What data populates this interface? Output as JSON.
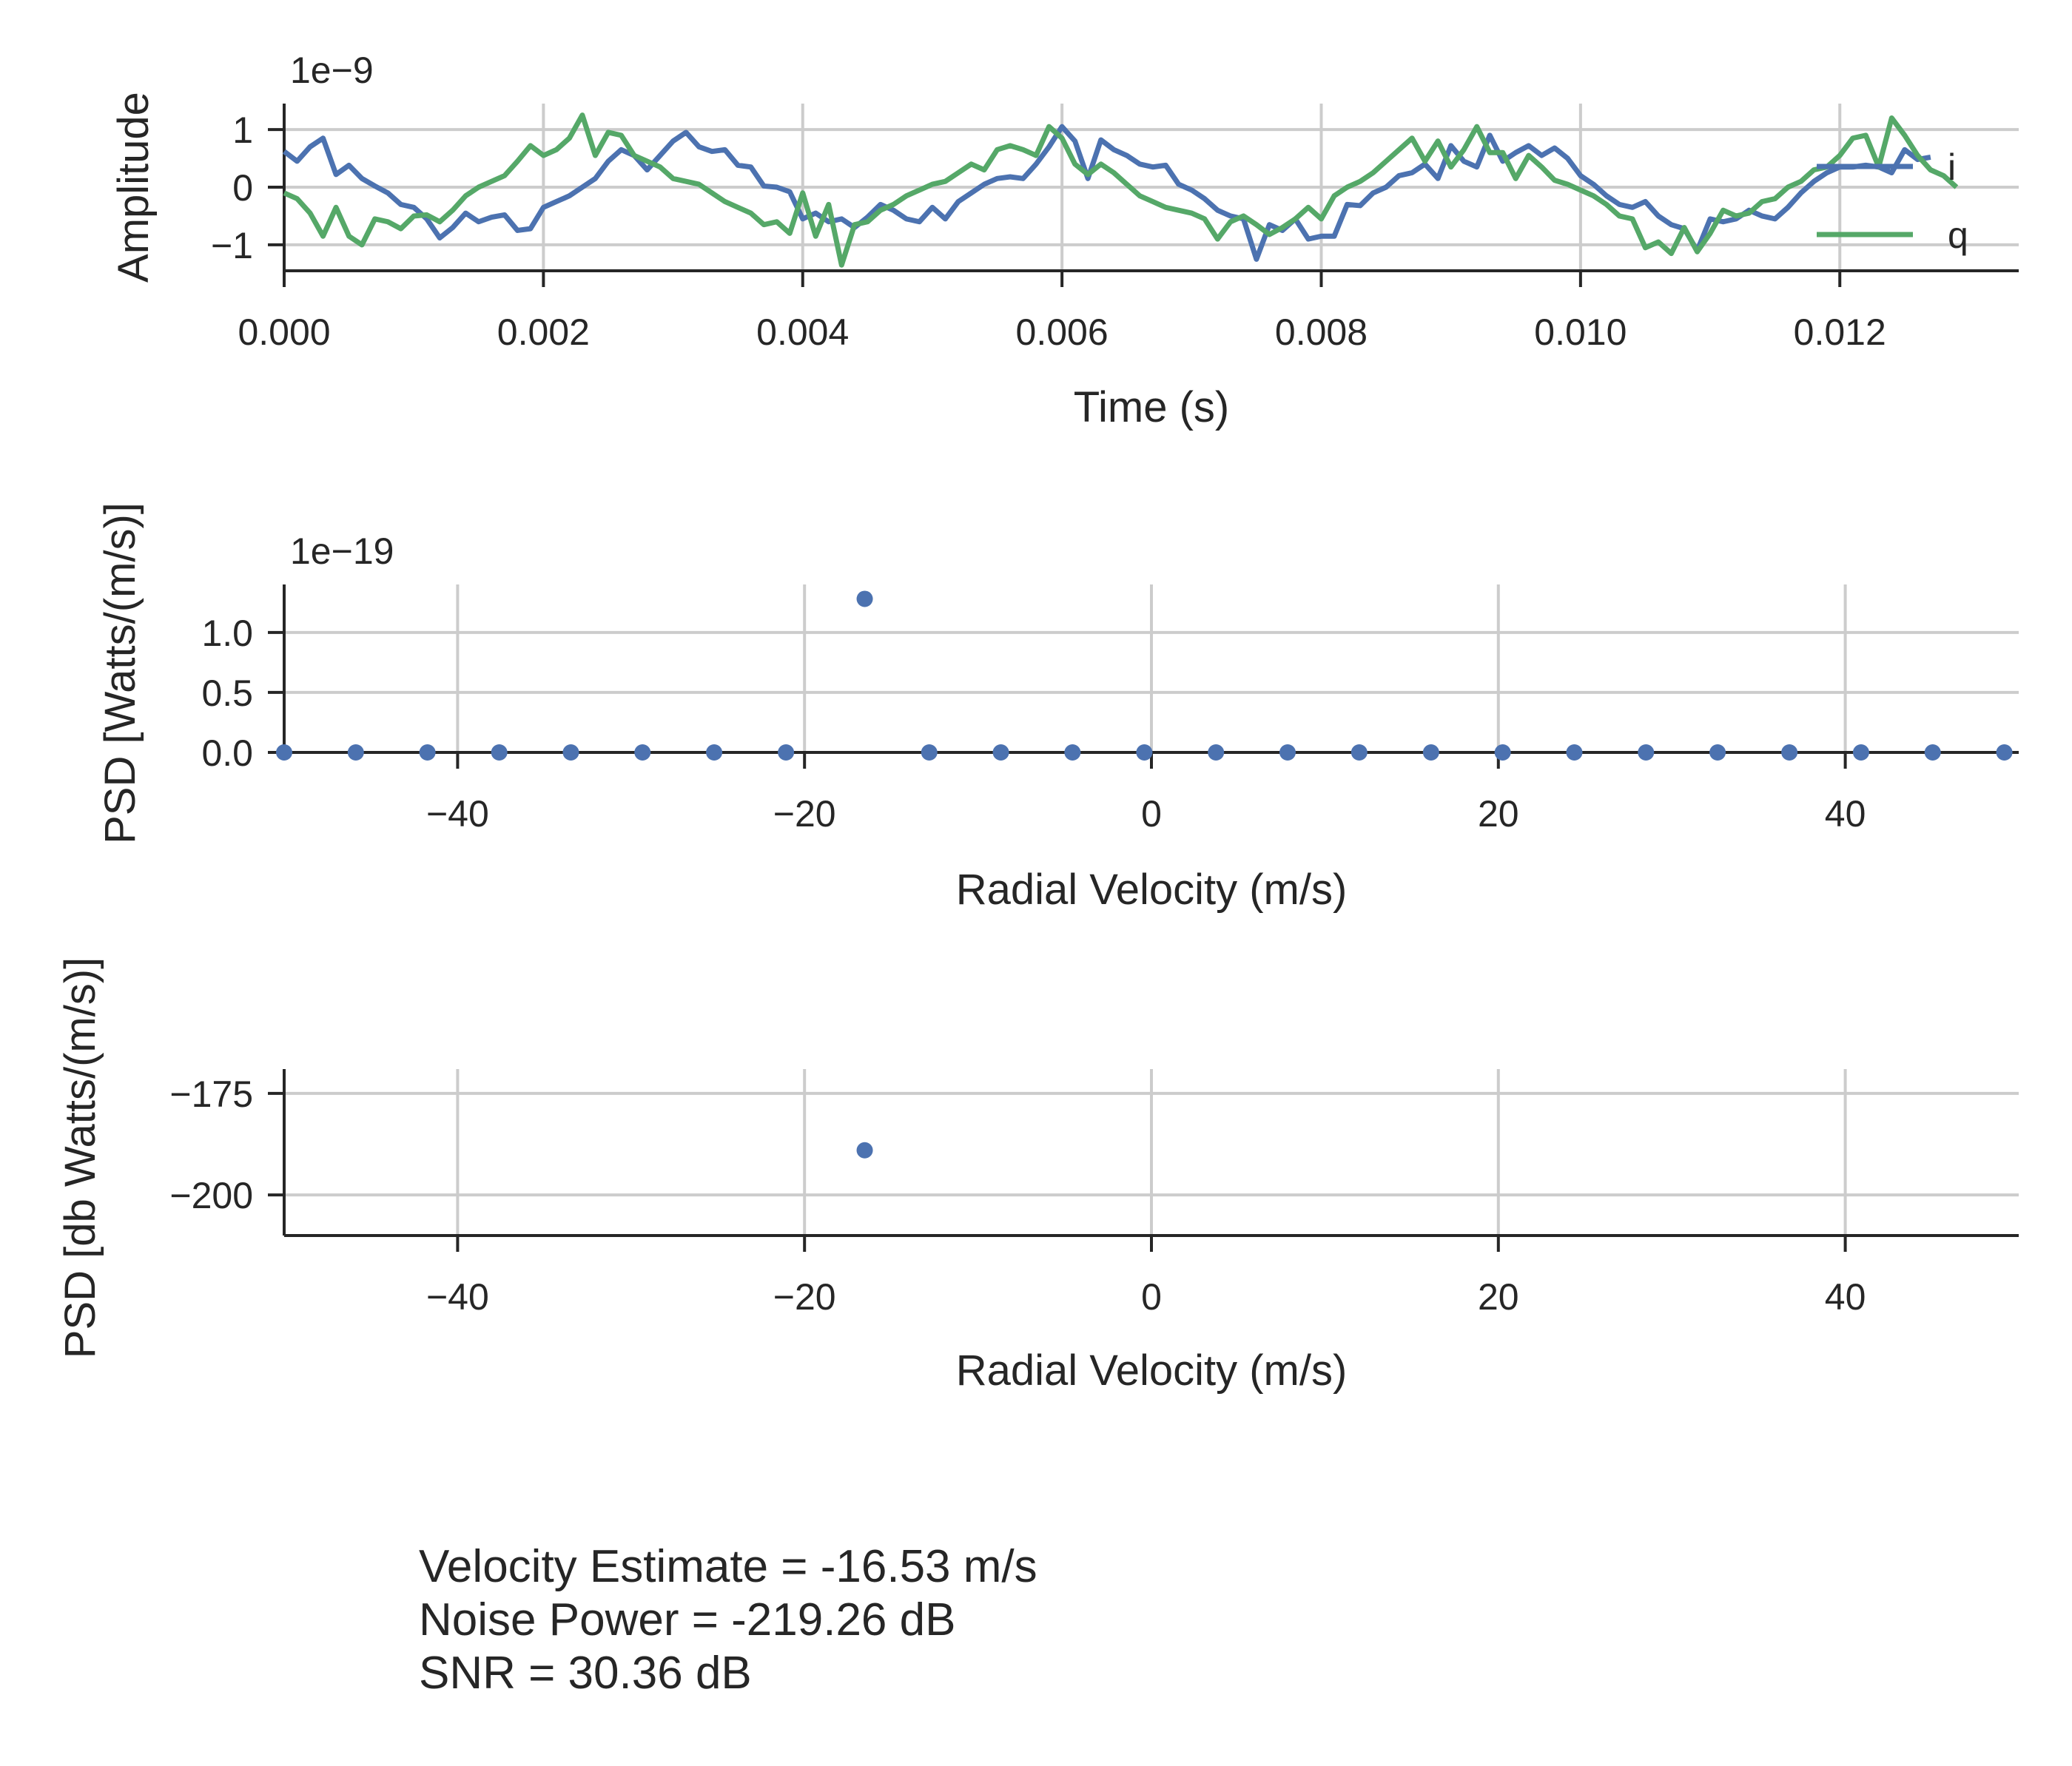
{
  "chart_data": [
    {
      "type": "line",
      "xlabel": "Time (s)",
      "ylabel": "Amplitude",
      "offset_text": "1e−9",
      "xlim": [
        0,
        0.01338
      ],
      "ylim": [
        -1.45,
        1.45
      ],
      "xticks": [
        0.0,
        0.002,
        0.004,
        0.006,
        0.008,
        0.01,
        0.012
      ],
      "xtick_labels": [
        "0.000",
        "0.002",
        "0.004",
        "0.006",
        "0.008",
        "0.010",
        "0.012"
      ],
      "yticks": [
        -1,
        0,
        1
      ],
      "ytick_labels": [
        "−1",
        "0",
        "1"
      ],
      "grid": true,
      "legend_position": "right",
      "dt": 0.0001,
      "series": [
        {
          "name": "i",
          "color": "#4c72b0",
          "values": [
            0.62,
            0.45,
            0.7,
            0.85,
            0.22,
            0.38,
            0.15,
            0.02,
            -0.1,
            -0.3,
            -0.35,
            -0.55,
            -0.88,
            -0.7,
            -0.45,
            -0.6,
            -0.52,
            -0.48,
            -0.75,
            -0.72,
            -0.35,
            -0.25,
            -0.15,
            0.0,
            0.15,
            0.45,
            0.65,
            0.55,
            0.3,
            0.55,
            0.8,
            0.95,
            0.7,
            0.62,
            0.65,
            0.38,
            0.35,
            0.02,
            0.0,
            -0.08,
            -0.55,
            -0.45,
            -0.6,
            -0.55,
            -0.7,
            -0.52,
            -0.3,
            -0.4,
            -0.55,
            -0.6,
            -0.35,
            -0.55,
            -0.25,
            -0.1,
            0.05,
            0.15,
            0.18,
            0.15,
            0.4,
            0.7,
            1.05,
            0.8,
            0.15,
            0.82,
            0.65,
            0.55,
            0.4,
            0.35,
            0.38,
            0.05,
            -0.05,
            -0.2,
            -0.4,
            -0.5,
            -0.55,
            -1.25,
            -0.65,
            -0.75,
            -0.55,
            -0.9,
            -0.85,
            -0.85,
            -0.3,
            -0.32,
            -0.1,
            0.0,
            0.2,
            0.25,
            0.4,
            0.15,
            0.72,
            0.45,
            0.35,
            0.9,
            0.45,
            0.6,
            0.72,
            0.55,
            0.68,
            0.5,
            0.2,
            0.05,
            -0.15,
            -0.3,
            -0.35,
            -0.25,
            -0.5,
            -0.65,
            -0.72,
            -1.1,
            -0.55,
            -0.6,
            -0.55,
            -0.4,
            -0.5,
            -0.55,
            -0.35,
            -0.1,
            0.1,
            0.25,
            0.35,
            0.35,
            0.38,
            0.35,
            0.25,
            0.65,
            0.48,
            0.52
          ]
        },
        {
          "name": "q",
          "color": "#55a868",
          "values": [
            -0.1,
            -0.2,
            -0.45,
            -0.85,
            -0.35,
            -0.85,
            -1.0,
            -0.55,
            -0.6,
            -0.72,
            -0.5,
            -0.48,
            -0.6,
            -0.4,
            -0.15,
            0.0,
            0.1,
            0.2,
            0.45,
            0.72,
            0.55,
            0.65,
            0.85,
            1.25,
            0.55,
            0.95,
            0.9,
            0.55,
            0.45,
            0.35,
            0.15,
            0.1,
            0.05,
            -0.1,
            -0.25,
            -0.35,
            -0.45,
            -0.65,
            -0.6,
            -0.8,
            -0.1,
            -0.85,
            -0.3,
            -1.35,
            -0.65,
            -0.6,
            -0.4,
            -0.3,
            -0.15,
            -0.05,
            0.05,
            0.1,
            0.25,
            0.4,
            0.3,
            0.65,
            0.72,
            0.65,
            0.55,
            1.05,
            0.85,
            0.4,
            0.22,
            0.4,
            0.25,
            0.05,
            -0.15,
            -0.25,
            -0.35,
            -0.4,
            -0.45,
            -0.55,
            -0.9,
            -0.6,
            -0.5,
            -0.65,
            -0.82,
            -0.7,
            -0.55,
            -0.35,
            -0.55,
            -0.15,
            0.0,
            0.1,
            0.25,
            0.45,
            0.65,
            0.85,
            0.45,
            0.8,
            0.35,
            0.65,
            1.05,
            0.6,
            0.6,
            0.15,
            0.55,
            0.35,
            0.12,
            0.05,
            -0.05,
            -0.15,
            -0.3,
            -0.5,
            -0.55,
            -1.05,
            -0.95,
            -1.15,
            -0.7,
            -1.12,
            -0.8,
            -0.4,
            -0.5,
            -0.45,
            -0.25,
            -0.2,
            0.0,
            0.1,
            0.3,
            0.35,
            0.55,
            0.85,
            0.9,
            0.35,
            1.2,
            0.9,
            0.55,
            0.3,
            0.2,
            0.0
          ]
        }
      ]
    },
    {
      "type": "scatter",
      "xlabel": "Radial Velocity (m/s)",
      "ylabel": "PSD [Watts/(m/s)]",
      "offset_text": "1e−19",
      "xlim": [
        -50,
        50
      ],
      "ylim": [
        0,
        1.4
      ],
      "xticks": [
        -40,
        -20,
        0,
        20,
        40
      ],
      "xtick_labels": [
        "−40",
        "−20",
        "0",
        "20",
        "40"
      ],
      "yticks": [
        0.0,
        0.5,
        1.0
      ],
      "ytick_labels": [
        "0.0",
        "0.5",
        "1.0"
      ],
      "grid": true,
      "series": [
        {
          "color": "#4c72b0",
          "x": [
            -50.0,
            -45.87,
            -41.74,
            -37.6,
            -33.47,
            -29.34,
            -25.21,
            -21.07,
            -16.53,
            -12.81,
            -8.68,
            -4.55,
            -0.41,
            3.72,
            7.85,
            11.98,
            16.12,
            20.25,
            24.38,
            28.51,
            32.64,
            36.78,
            40.91,
            45.04,
            49.17
          ],
          "y": [
            0,
            0,
            0,
            0,
            0,
            0,
            0,
            0,
            1.28,
            0,
            0,
            0,
            0,
            0,
            0,
            0,
            0,
            0,
            0,
            0,
            0,
            0,
            0,
            0,
            0
          ]
        }
      ]
    },
    {
      "type": "scatter",
      "xlabel": "Radial Velocity (m/s)",
      "ylabel": "PSD [db Watts/(m/s)]",
      "xlim": [
        -50,
        50
      ],
      "ylim": [
        -210,
        -169
      ],
      "xticks": [
        -40,
        -20,
        0,
        20,
        40
      ],
      "xtick_labels": [
        "−40",
        "−20",
        "0",
        "20",
        "40"
      ],
      "yticks": [
        -200,
        -175
      ],
      "ytick_labels": [
        "−200",
        "−175"
      ],
      "grid": true,
      "series": [
        {
          "color": "#4c72b0",
          "x": [
            -16.53
          ],
          "y": [
            -189.0
          ]
        }
      ]
    }
  ],
  "annotation": {
    "line1": "Velocity Estimate = -16.53 m/s",
    "line2": "Noise Power = -219.26 dB",
    "line3": "SNR = 30.36 dB"
  }
}
